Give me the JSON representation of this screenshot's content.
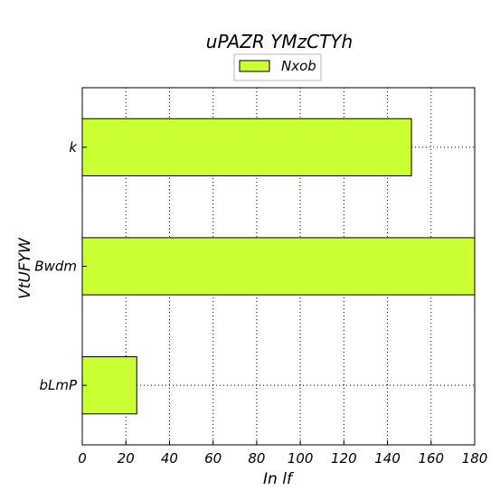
{
  "chart_data": {
    "type": "bar",
    "orientation": "horizontal",
    "title": "uPAZR YMzCTYh",
    "xlabel": "In lf",
    "ylabel": "VtUFYW",
    "categories": [
      "k",
      "Bwdm",
      "bLmP"
    ],
    "series": [
      {
        "name": "Nxob",
        "values": [
          151,
          180,
          25
        ],
        "color": "#c9ff33"
      }
    ],
    "xlim": [
      0,
      180
    ],
    "xticks": [
      0,
      20,
      40,
      60,
      80,
      100,
      120,
      140,
      160,
      180
    ],
    "grid": true,
    "legend_position": "top-center"
  }
}
